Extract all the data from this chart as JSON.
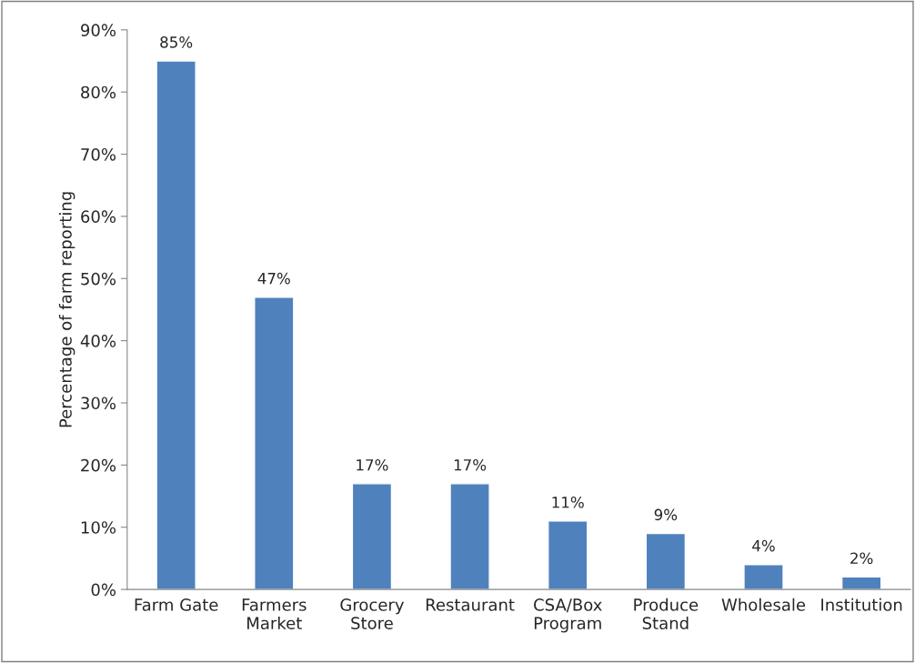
{
  "chart_data": {
    "type": "bar",
    "ylabel": "Percentage of farm reporting",
    "categories": [
      "Farm Gate",
      "Farmers\nMarket",
      "Grocery\nStore",
      "Restaurant",
      "CSA/Box\nProgram",
      "Produce\nStand",
      "Wholesale",
      "Institution"
    ],
    "values": [
      85,
      47,
      17,
      17,
      11,
      9,
      4,
      2
    ],
    "value_labels": [
      "85%",
      "47%",
      "17%",
      "17%",
      "11%",
      "9%",
      "4%",
      "2%"
    ],
    "color": "#4f81bd",
    "ylim": [
      0,
      90
    ],
    "yticks": [
      {
        "value": 0,
        "label": "0%"
      },
      {
        "value": 10,
        "label": "10%"
      },
      {
        "value": 20,
        "label": "20%"
      },
      {
        "value": 30,
        "label": "30%"
      },
      {
        "value": 40,
        "label": "40%"
      },
      {
        "value": 50,
        "label": "50%"
      },
      {
        "value": 60,
        "label": "60%"
      },
      {
        "value": 70,
        "label": "70%"
      },
      {
        "value": 80,
        "label": "80%"
      },
      {
        "value": 90,
        "label": "90%"
      }
    ],
    "grid": false,
    "legend": false
  }
}
